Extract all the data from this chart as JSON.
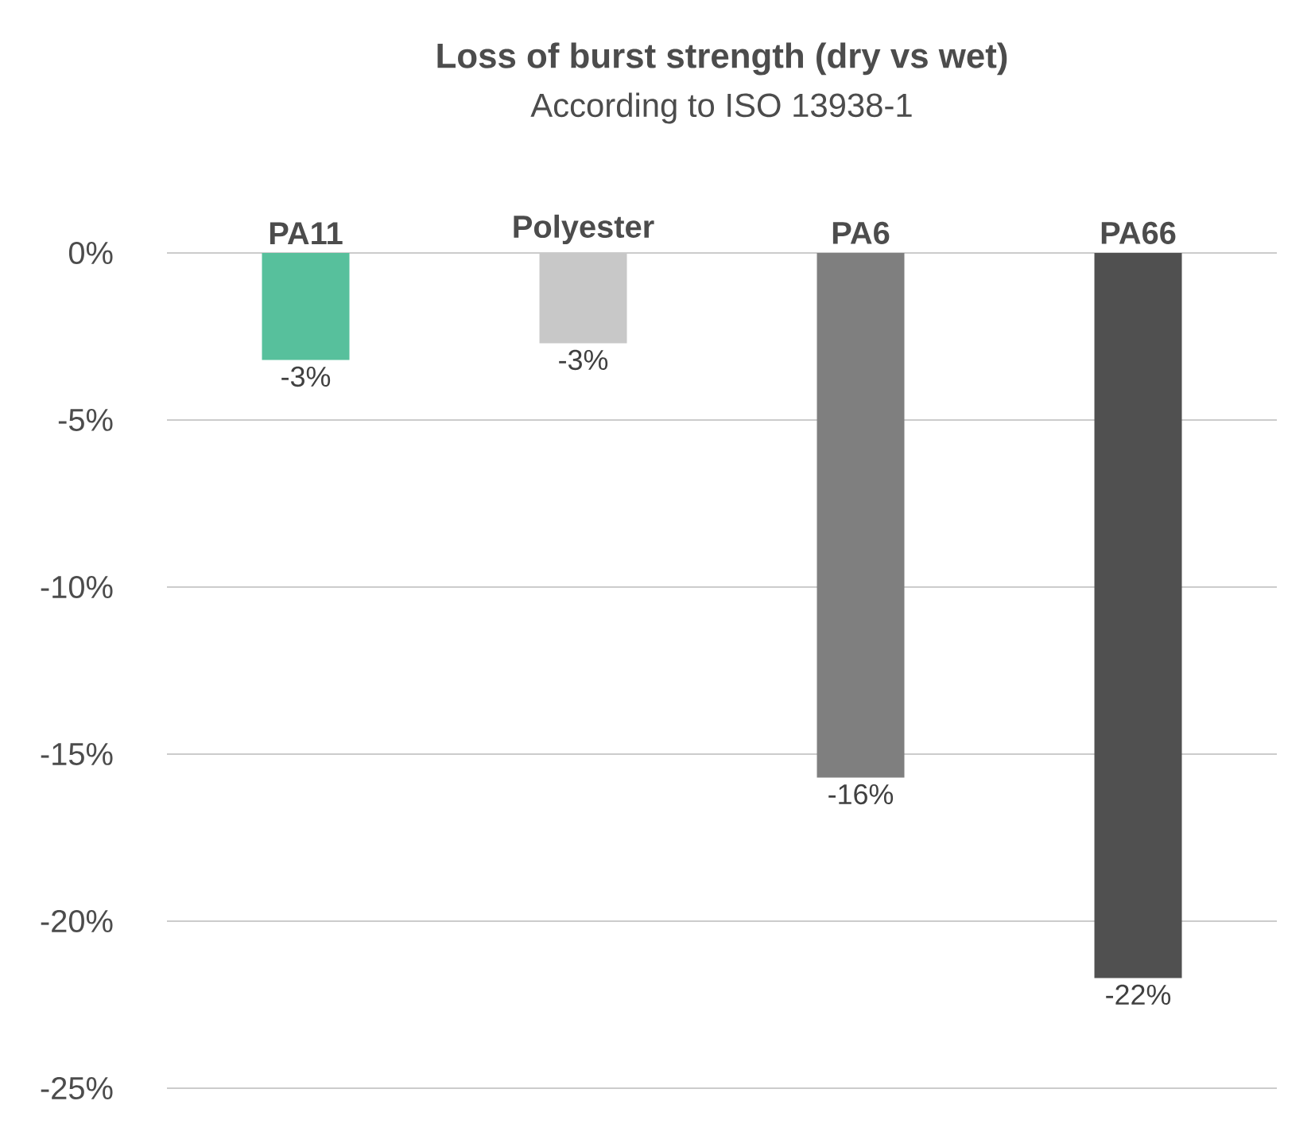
{
  "chart_data": {
    "type": "bar",
    "title": "Loss of burst strength (dry vs wet)",
    "subtitle": "According to ISO 13938-1",
    "categories": [
      "PA11",
      "Polyester",
      "PA6",
      "PA66"
    ],
    "values": [
      -3.2,
      -2.7,
      -15.7,
      -21.7
    ],
    "colors": [
      "#57c09c",
      "#c8c8c8",
      "#7f7f7f",
      "#505050"
    ],
    "value_labels": [
      "-3%",
      "-3%",
      "-16%",
      "-22%"
    ],
    "ylim": [
      -25,
      0
    ],
    "yticks": [
      {
        "value": 0,
        "label": "0%"
      },
      {
        "value": -5,
        "label": "-5%"
      },
      {
        "value": -10,
        "label": "-10%"
      },
      {
        "value": -15,
        "label": "-15%"
      },
      {
        "value": -20,
        "label": "-20%"
      },
      {
        "value": -25,
        "label": "-25%"
      }
    ],
    "grid": "y"
  }
}
